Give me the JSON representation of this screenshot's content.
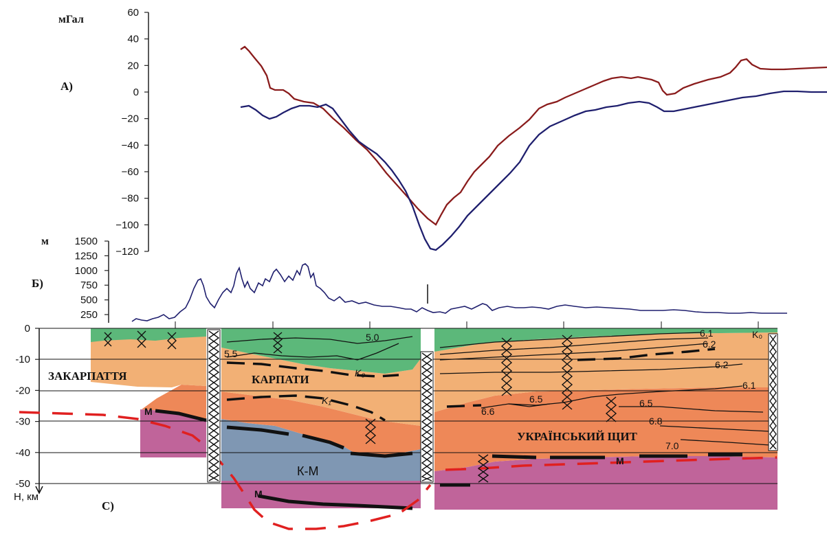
{
  "panel_a": {
    "label": "А)",
    "unit": "мГал",
    "ticks": [
      "60",
      "40",
      "20",
      "0",
      "−20",
      "−40",
      "−60",
      "−80",
      "−100",
      "−120"
    ],
    "tick_values": [
      60,
      40,
      20,
      0,
      -20,
      -40,
      -60,
      -80,
      -100,
      -120
    ],
    "colors": {
      "red_curve": "#8a1c1c",
      "blue_curve": "#1f1f6e"
    }
  },
  "panel_b": {
    "label": "Б)",
    "unit": "м",
    "ticks": [
      "1500",
      "1250",
      "1000",
      "750",
      "500",
      "250"
    ],
    "tick_values": [
      1500,
      1250,
      1000,
      750,
      500,
      250
    ],
    "color": "#1f1f6e"
  },
  "panel_c": {
    "label": "С)",
    "axis_label": "Н, км",
    "ticks": [
      "0",
      "-10",
      "-20",
      "-30",
      "-40",
      "-50"
    ],
    "tick_values": [
      0,
      -10,
      -20,
      -30,
      -40,
      -50
    ],
    "regions": {
      "zakarpattia": "ЗАКАРПАТТЯ",
      "karpaty": "КАРПАТИ",
      "ukr_shield": "УКРАЇНСЬКИЙ ЩИТ"
    },
    "isolines": [
      "5.0",
      "5.5",
      "6.1",
      "6.2",
      "6.2",
      "6.1",
      "6.5",
      "6.5",
      "6.6",
      "6.8",
      "7.0"
    ],
    "labels": {
      "k0_left": "K₀",
      "k1": "K₁",
      "k0_right": "K₀",
      "km": "К-М",
      "m_left": "М",
      "m_bottom": "М",
      "m_right": "М"
    },
    "colors": {
      "green": "#5cb87a",
      "orange_light": "#f2b075",
      "orange_dark": "#ee8858",
      "magenta": "#c0649a",
      "grey_blue": "#7f97b3",
      "moho_dash": "#e02020"
    }
  }
}
